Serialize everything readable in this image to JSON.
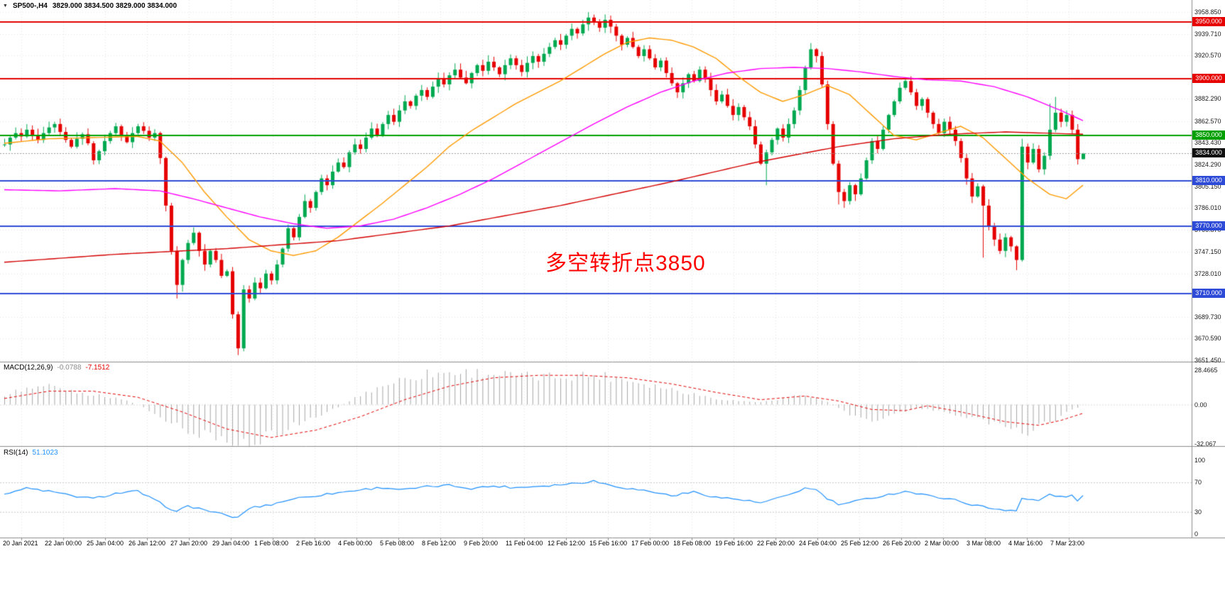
{
  "header": {
    "symbol_period": "SP500-,H4",
    "ohlc": "3829.000 3834.500 3829.000 3834.000"
  },
  "icons": {
    "collapse": "▼"
  },
  "colors": {
    "up": "#00a94f",
    "down": "#e60000",
    "grid": "#e3e3e3",
    "separator": "#8c8c8c",
    "price_line_dotted": "#999999",
    "macd_hist": "#a6a6a6",
    "macd_signal": "#e60000",
    "rsi_line": "#1e90ff",
    "current_price_badge": "#101010"
  },
  "main_chart": {
    "annotation": {
      "text": "多空转折点3850",
      "color": "#ff0000"
    },
    "current_price": {
      "value": 3834.0,
      "label": "3834.000"
    },
    "levels": [
      {
        "price": 3950.0,
        "label": "3950.000",
        "color": "#e60000"
      },
      {
        "price": 3900.0,
        "label": "3900.000",
        "color": "#e60000"
      },
      {
        "price": 3850.0,
        "label": "3850.000",
        "color": "#00a000"
      },
      {
        "price": 3810.0,
        "label": "3810.000",
        "color": "#2e4bd8"
      },
      {
        "price": 3770.0,
        "label": "3770.000",
        "color": "#2e4bd8"
      },
      {
        "price": 3710.0,
        "label": "3710.000",
        "color": "#2e4bd8"
      }
    ]
  },
  "chart_data": {
    "type": "candlestick",
    "symbol": "SP500-",
    "timeframe": "H4",
    "current_bar": {
      "open": 3829.0,
      "high": 3834.5,
      "low": 3829.0,
      "close": 3834.0
    },
    "price_axis_ticks": [
      3958.85,
      3939.71,
      3920.57,
      3882.29,
      3862.57,
      3843.43,
      3824.29,
      3805.15,
      3786.01,
      3766.87,
      3747.15,
      3728.01,
      3689.73,
      3670.59,
      3651.45
    ],
    "time_labels": [
      "20 Jan 2021",
      "22 Jan 00:00",
      "25 Jan 04:00",
      "26 Jan 12:00",
      "27 Jan 20:00",
      "29 Jan 04:00",
      "1 Feb 08:00",
      "2 Feb 16:00",
      "4 Feb 00:00",
      "5 Feb 08:00",
      "8 Feb 12:00",
      "9 Feb 20:00",
      "11 Feb 04:00",
      "12 Feb 12:00",
      "15 Feb 16:00",
      "17 Feb 00:00",
      "18 Feb 08:00",
      "19 Feb 16:00",
      "22 Feb 20:00",
      "24 Feb 04:00",
      "25 Feb 12:00",
      "26 Feb 20:00",
      "2 Mar 00:00",
      "3 Mar 08:00",
      "4 Mar 16:00",
      "7 Mar 23:00"
    ],
    "candles": {
      "first_open": 3842,
      "closes": [
        3842,
        3848,
        3852,
        3849,
        3855,
        3850,
        3846,
        3852,
        3857,
        3860,
        3853,
        3846,
        3840,
        3847,
        3851,
        3843,
        3828,
        3836,
        3845,
        3852,
        3858,
        3850,
        3844,
        3852,
        3858,
        3854,
        3848,
        3852,
        3830,
        3788,
        3748,
        3718,
        3740,
        3755,
        3764,
        3748,
        3736,
        3748,
        3740,
        3726,
        3730,
        3692,
        3662,
        3714,
        3706,
        3720,
        3715,
        3728,
        3722,
        3736,
        3750,
        3768,
        3760,
        3778,
        3792,
        3786,
        3800,
        3812,
        3806,
        3818,
        3826,
        3822,
        3835,
        3842,
        3838,
        3848,
        3856,
        3850,
        3860,
        3868,
        3862,
        3872,
        3880,
        3876,
        3885,
        3890,
        3884,
        3893,
        3900,
        3895,
        3903,
        3908,
        3901,
        3896,
        3905,
        3912,
        3907,
        3915,
        3910,
        3904,
        3912,
        3918,
        3912,
        3906,
        3914,
        3920,
        3915,
        3922,
        3928,
        3934,
        3930,
        3938,
        3944,
        3940,
        3948,
        3954,
        3950,
        3945,
        3952,
        3946,
        3938,
        3930,
        3936,
        3928,
        3920,
        3926,
        3918,
        3910,
        3916,
        3905,
        3896,
        3888,
        3896,
        3904,
        3898,
        3908,
        3900,
        3890,
        3880,
        3886,
        3876,
        3868,
        3875,
        3866,
        3858,
        3842,
        3825,
        3835,
        3846,
        3856,
        3848,
        3860,
        3872,
        3890,
        3910,
        3926,
        3920,
        3895,
        3860,
        3825,
        3800,
        3792,
        3806,
        3798,
        3812,
        3828,
        3845,
        3838,
        3855,
        3868,
        3880,
        3892,
        3898,
        3888,
        3876,
        3882,
        3870,
        3860,
        3852,
        3862,
        3855,
        3845,
        3830,
        3812,
        3796,
        3805,
        3788,
        3770,
        3758,
        3748,
        3760,
        3752,
        3740,
        3840,
        3826,
        3838,
        3820,
        3832,
        3855,
        3870,
        3862,
        3868,
        3855,
        3829,
        3834
      ],
      "spikes": {
        "9": {
          "high": 3862
        },
        "20": {
          "high": 3861
        },
        "31": {
          "low": 3706
        },
        "42": {
          "low": 3656
        },
        "105": {
          "high": 3958.8
        },
        "137": {
          "low": 3806
        },
        "150": {
          "low": 3789
        },
        "151": {
          "low": 3786
        },
        "176": {
          "low": 3742
        },
        "182": {
          "low": 3731
        },
        "183": {
          "high": 3847
        },
        "188": {
          "high": 3878
        },
        "189": {
          "high": 3884
        },
        "194": {
          "high": 3834.5,
          "low": 3829
        }
      }
    },
    "moving_averages": [
      {
        "name": "ma-fast-orange",
        "color": "#ff9a00",
        "points": [
          [
            0,
            3843
          ],
          [
            8,
            3847
          ],
          [
            16,
            3848
          ],
          [
            24,
            3849
          ],
          [
            28,
            3845
          ],
          [
            32,
            3826
          ],
          [
            36,
            3800
          ],
          [
            40,
            3778
          ],
          [
            44,
            3758
          ],
          [
            48,
            3748
          ],
          [
            52,
            3744
          ],
          [
            56,
            3748
          ],
          [
            60,
            3760
          ],
          [
            64,
            3775
          ],
          [
            68,
            3790
          ],
          [
            72,
            3806
          ],
          [
            76,
            3822
          ],
          [
            80,
            3840
          ],
          [
            84,
            3854
          ],
          [
            88,
            3866
          ],
          [
            92,
            3878
          ],
          [
            96,
            3888
          ],
          [
            100,
            3898
          ],
          [
            104,
            3910
          ],
          [
            108,
            3922
          ],
          [
            112,
            3932
          ],
          [
            116,
            3936
          ],
          [
            120,
            3934
          ],
          [
            124,
            3928
          ],
          [
            128,
            3918
          ],
          [
            132,
            3902
          ],
          [
            136,
            3888
          ],
          [
            140,
            3880
          ],
          [
            144,
            3886
          ],
          [
            148,
            3894
          ],
          [
            152,
            3886
          ],
          [
            156,
            3868
          ],
          [
            160,
            3850
          ],
          [
            164,
            3846
          ],
          [
            168,
            3852
          ],
          [
            172,
            3858
          ],
          [
            176,
            3848
          ],
          [
            180,
            3830
          ],
          [
            184,
            3812
          ],
          [
            188,
            3798
          ],
          [
            191,
            3794
          ],
          [
            194,
            3806
          ]
        ]
      },
      {
        "name": "ma-mid-magenta",
        "color": "#ff00ff",
        "points": [
          [
            0,
            3802
          ],
          [
            10,
            3801
          ],
          [
            20,
            3803
          ],
          [
            28,
            3801
          ],
          [
            34,
            3794
          ],
          [
            40,
            3786
          ],
          [
            46,
            3778
          ],
          [
            52,
            3772
          ],
          [
            58,
            3768
          ],
          [
            64,
            3770
          ],
          [
            70,
            3776
          ],
          [
            76,
            3786
          ],
          [
            82,
            3798
          ],
          [
            88,
            3812
          ],
          [
            94,
            3828
          ],
          [
            100,
            3844
          ],
          [
            106,
            3860
          ],
          [
            112,
            3875
          ],
          [
            118,
            3888
          ],
          [
            124,
            3898
          ],
          [
            130,
            3905
          ],
          [
            136,
            3909
          ],
          [
            142,
            3910
          ],
          [
            148,
            3909
          ],
          [
            154,
            3906
          ],
          [
            160,
            3902
          ],
          [
            166,
            3899
          ],
          [
            172,
            3898
          ],
          [
            178,
            3893
          ],
          [
            184,
            3884
          ],
          [
            190,
            3872
          ],
          [
            194,
            3863
          ]
        ]
      },
      {
        "name": "ma-slow-red",
        "color": "#d40000",
        "points": [
          [
            0,
            3738
          ],
          [
            20,
            3745
          ],
          [
            40,
            3750
          ],
          [
            60,
            3757
          ],
          [
            80,
            3770
          ],
          [
            100,
            3788
          ],
          [
            120,
            3809
          ],
          [
            135,
            3826
          ],
          [
            150,
            3840
          ],
          [
            160,
            3847
          ],
          [
            170,
            3851
          ],
          [
            180,
            3853
          ],
          [
            194,
            3851
          ]
        ]
      }
    ],
    "indicators": [
      {
        "name": "MACD(12,26,9)",
        "values": [
          "-0.0788",
          "-7.1512"
        ],
        "axis": [
          "28.4665",
          "0.00",
          "-32.067"
        ],
        "histogram": [
          [
            0,
            8
          ],
          [
            4,
            14
          ],
          [
            8,
            16
          ],
          [
            12,
            12
          ],
          [
            16,
            8
          ],
          [
            20,
            6
          ],
          [
            24,
            0
          ],
          [
            28,
            -10
          ],
          [
            32,
            -20
          ],
          [
            36,
            -26
          ],
          [
            40,
            -30
          ],
          [
            44,
            -31
          ],
          [
            48,
            -26
          ],
          [
            52,
            -18
          ],
          [
            56,
            -10
          ],
          [
            60,
            -2
          ],
          [
            64,
            8
          ],
          [
            68,
            16
          ],
          [
            72,
            22
          ],
          [
            76,
            26
          ],
          [
            80,
            27
          ],
          [
            84,
            27
          ],
          [
            88,
            26
          ],
          [
            92,
            24
          ],
          [
            96,
            23
          ],
          [
            100,
            24
          ],
          [
            104,
            25
          ],
          [
            108,
            24
          ],
          [
            112,
            21
          ],
          [
            116,
            17
          ],
          [
            120,
            13
          ],
          [
            124,
            9
          ],
          [
            128,
            5
          ],
          [
            132,
            3
          ],
          [
            136,
            2
          ],
          [
            140,
            5
          ],
          [
            144,
            9
          ],
          [
            148,
            2
          ],
          [
            152,
            -8
          ],
          [
            156,
            -13
          ],
          [
            160,
            -8
          ],
          [
            164,
            -3
          ],
          [
            168,
            -5
          ],
          [
            172,
            -9
          ],
          [
            176,
            -14
          ],
          [
            180,
            -19
          ],
          [
            184,
            -23
          ],
          [
            188,
            -15
          ],
          [
            191,
            -7
          ],
          [
            194,
            -0.1
          ]
        ],
        "signal": [
          [
            0,
            5
          ],
          [
            8,
            11
          ],
          [
            16,
            11
          ],
          [
            24,
            6
          ],
          [
            32,
            -6
          ],
          [
            40,
            -20
          ],
          [
            48,
            -27
          ],
          [
            56,
            -21
          ],
          [
            64,
            -10
          ],
          [
            72,
            4
          ],
          [
            80,
            15
          ],
          [
            88,
            22
          ],
          [
            96,
            24
          ],
          [
            104,
            24
          ],
          [
            112,
            22
          ],
          [
            120,
            17
          ],
          [
            128,
            10
          ],
          [
            136,
            4
          ],
          [
            144,
            7
          ],
          [
            150,
            3
          ],
          [
            156,
            -4
          ],
          [
            162,
            -5
          ],
          [
            166,
            -1
          ],
          [
            172,
            -6
          ],
          [
            180,
            -14
          ],
          [
            186,
            -17
          ],
          [
            190,
            -13
          ],
          [
            194,
            -7.15
          ]
        ]
      },
      {
        "name": "RSI(14)",
        "values": [
          "51.1023"
        ],
        "axis": [
          "100",
          "70",
          "30",
          "0"
        ],
        "line": [
          [
            0,
            55
          ],
          [
            4,
            62
          ],
          [
            8,
            58
          ],
          [
            12,
            52
          ],
          [
            16,
            48
          ],
          [
            20,
            55
          ],
          [
            24,
            58
          ],
          [
            28,
            42
          ],
          [
            31,
            30
          ],
          [
            33,
            38
          ],
          [
            36,
            33
          ],
          [
            40,
            25
          ],
          [
            42,
            22
          ],
          [
            44,
            35
          ],
          [
            48,
            40
          ],
          [
            52,
            48
          ],
          [
            56,
            52
          ],
          [
            60,
            56
          ],
          [
            64,
            60
          ],
          [
            68,
            63
          ],
          [
            72,
            60
          ],
          [
            76,
            64
          ],
          [
            80,
            66
          ],
          [
            84,
            62
          ],
          [
            88,
            65
          ],
          [
            92,
            63
          ],
          [
            96,
            65
          ],
          [
            100,
            67
          ],
          [
            104,
            70
          ],
          [
            106,
            72
          ],
          [
            108,
            68
          ],
          [
            112,
            62
          ],
          [
            116,
            58
          ],
          [
            120,
            52
          ],
          [
            124,
            57
          ],
          [
            128,
            50
          ],
          [
            132,
            47
          ],
          [
            136,
            42
          ],
          [
            140,
            50
          ],
          [
            144,
            62
          ],
          [
            146,
            60
          ],
          [
            148,
            48
          ],
          [
            150,
            40
          ],
          [
            152,
            42
          ],
          [
            154,
            46
          ],
          [
            158,
            52
          ],
          [
            162,
            58
          ],
          [
            166,
            52
          ],
          [
            170,
            48
          ],
          [
            174,
            40
          ],
          [
            178,
            34
          ],
          [
            182,
            32
          ],
          [
            183,
            48
          ],
          [
            186,
            45
          ],
          [
            188,
            54
          ],
          [
            190,
            50
          ],
          [
            192,
            52
          ],
          [
            193,
            46
          ],
          [
            194,
            51.1
          ]
        ]
      }
    ]
  }
}
